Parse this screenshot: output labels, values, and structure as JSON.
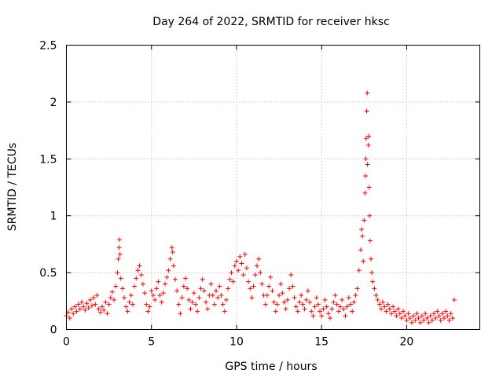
{
  "chart_data": {
    "type": "scatter",
    "title": "Day 264 of 2022, SRMTID for receiver hksc",
    "xlabel": "GPS time / hours",
    "ylabel": "SRMTID / TECUs",
    "xlim": [
      0,
      24.3
    ],
    "ylim": [
      0,
      2.5
    ],
    "xticks": [
      0,
      5,
      10,
      15,
      20
    ],
    "xtick_labels": [
      "0",
      "5",
      "10",
      "15",
      "20"
    ],
    "yticks": [
      0,
      0.5,
      1,
      1.5,
      2,
      2.5
    ],
    "ytick_labels": [
      "0",
      "0.5",
      "1",
      "1.5",
      "2",
      "2.5"
    ],
    "grid": true,
    "marker": "+",
    "marker_color": "#ff0000",
    "series": [
      {
        "name": "SRMTID",
        "points": [
          [
            0.0,
            0.12
          ],
          [
            0.1,
            0.15
          ],
          [
            0.2,
            0.1
          ],
          [
            0.3,
            0.18
          ],
          [
            0.4,
            0.14
          ],
          [
            0.5,
            0.2
          ],
          [
            0.6,
            0.16
          ],
          [
            0.7,
            0.22
          ],
          [
            0.8,
            0.18
          ],
          [
            0.9,
            0.24
          ],
          [
            1.0,
            0.2
          ],
          [
            1.1,
            0.17
          ],
          [
            1.2,
            0.23
          ],
          [
            1.3,
            0.19
          ],
          [
            1.4,
            0.26
          ],
          [
            1.5,
            0.21
          ],
          [
            1.6,
            0.28
          ],
          [
            1.7,
            0.22
          ],
          [
            1.8,
            0.3
          ],
          [
            1.9,
            0.18
          ],
          [
            2.0,
            0.15
          ],
          [
            2.1,
            0.2
          ],
          [
            2.2,
            0.17
          ],
          [
            2.3,
            0.24
          ],
          [
            2.4,
            0.14
          ],
          [
            2.5,
            0.22
          ],
          [
            2.6,
            0.28
          ],
          [
            2.7,
            0.33
          ],
          [
            2.8,
            0.26
          ],
          [
            2.9,
            0.38
          ],
          [
            3.0,
            0.5
          ],
          [
            3.05,
            0.62
          ],
          [
            3.1,
            0.72
          ],
          [
            3.12,
            0.79
          ],
          [
            3.15,
            0.66
          ],
          [
            3.2,
            0.45
          ],
          [
            3.3,
            0.36
          ],
          [
            3.4,
            0.28
          ],
          [
            3.5,
            0.2
          ],
          [
            3.6,
            0.16
          ],
          [
            3.7,
            0.24
          ],
          [
            3.8,
            0.3
          ],
          [
            3.9,
            0.22
          ],
          [
            4.0,
            0.38
          ],
          [
            4.1,
            0.45
          ],
          [
            4.2,
            0.52
          ],
          [
            4.3,
            0.56
          ],
          [
            4.4,
            0.48
          ],
          [
            4.5,
            0.4
          ],
          [
            4.6,
            0.32
          ],
          [
            4.7,
            0.22
          ],
          [
            4.8,
            0.16
          ],
          [
            4.9,
            0.2
          ],
          [
            5.0,
            0.34
          ],
          [
            5.1,
            0.3
          ],
          [
            5.2,
            0.26
          ],
          [
            5.3,
            0.36
          ],
          [
            5.4,
            0.42
          ],
          [
            5.5,
            0.3
          ],
          [
            5.6,
            0.24
          ],
          [
            5.7,
            0.32
          ],
          [
            5.8,
            0.4
          ],
          [
            5.9,
            0.46
          ],
          [
            6.0,
            0.52
          ],
          [
            6.1,
            0.62
          ],
          [
            6.2,
            0.72
          ],
          [
            6.25,
            0.68
          ],
          [
            6.3,
            0.56
          ],
          [
            6.4,
            0.44
          ],
          [
            6.5,
            0.34
          ],
          [
            6.6,
            0.22
          ],
          [
            6.7,
            0.14
          ],
          [
            6.8,
            0.28
          ],
          [
            6.9,
            0.38
          ],
          [
            7.0,
            0.45
          ],
          [
            7.1,
            0.36
          ],
          [
            7.2,
            0.26
          ],
          [
            7.3,
            0.18
          ],
          [
            7.4,
            0.24
          ],
          [
            7.5,
            0.32
          ],
          [
            7.6,
            0.22
          ],
          [
            7.7,
            0.16
          ],
          [
            7.8,
            0.28
          ],
          [
            7.9,
            0.36
          ],
          [
            8.0,
            0.44
          ],
          [
            8.1,
            0.34
          ],
          [
            8.2,
            0.24
          ],
          [
            8.3,
            0.18
          ],
          [
            8.4,
            0.3
          ],
          [
            8.5,
            0.4
          ],
          [
            8.6,
            0.3
          ],
          [
            8.7,
            0.22
          ],
          [
            8.8,
            0.34
          ],
          [
            8.9,
            0.28
          ],
          [
            9.0,
            0.38
          ],
          [
            9.1,
            0.3
          ],
          [
            9.2,
            0.22
          ],
          [
            9.3,
            0.16
          ],
          [
            9.4,
            0.26
          ],
          [
            9.5,
            0.36
          ],
          [
            9.6,
            0.44
          ],
          [
            9.7,
            0.5
          ],
          [
            9.8,
            0.42
          ],
          [
            9.9,
            0.56
          ],
          [
            10.0,
            0.6
          ],
          [
            10.1,
            0.52
          ],
          [
            10.2,
            0.64
          ],
          [
            10.3,
            0.58
          ],
          [
            10.4,
            0.48
          ],
          [
            10.5,
            0.66
          ],
          [
            10.6,
            0.54
          ],
          [
            10.7,
            0.42
          ],
          [
            10.8,
            0.36
          ],
          [
            10.9,
            0.28
          ],
          [
            11.0,
            0.38
          ],
          [
            11.1,
            0.48
          ],
          [
            11.2,
            0.56
          ],
          [
            11.3,
            0.62
          ],
          [
            11.4,
            0.5
          ],
          [
            11.5,
            0.4
          ],
          [
            11.6,
            0.3
          ],
          [
            11.7,
            0.22
          ],
          [
            11.8,
            0.3
          ],
          [
            11.9,
            0.38
          ],
          [
            12.0,
            0.46
          ],
          [
            12.1,
            0.34
          ],
          [
            12.2,
            0.24
          ],
          [
            12.3,
            0.16
          ],
          [
            12.4,
            0.22
          ],
          [
            12.5,
            0.3
          ],
          [
            12.6,
            0.4
          ],
          [
            12.7,
            0.32
          ],
          [
            12.8,
            0.24
          ],
          [
            12.9,
            0.18
          ],
          [
            13.0,
            0.26
          ],
          [
            13.1,
            0.36
          ],
          [
            13.2,
            0.48
          ],
          [
            13.3,
            0.38
          ],
          [
            13.4,
            0.28
          ],
          [
            13.5,
            0.2
          ],
          [
            13.6,
            0.16
          ],
          [
            13.7,
            0.24
          ],
          [
            13.8,
            0.3
          ],
          [
            13.9,
            0.22
          ],
          [
            14.0,
            0.18
          ],
          [
            14.1,
            0.26
          ],
          [
            14.2,
            0.34
          ],
          [
            14.3,
            0.24
          ],
          [
            14.4,
            0.16
          ],
          [
            14.5,
            0.12
          ],
          [
            14.6,
            0.2
          ],
          [
            14.7,
            0.28
          ],
          [
            14.8,
            0.22
          ],
          [
            14.9,
            0.16
          ],
          [
            15.0,
            0.12
          ],
          [
            15.1,
            0.18
          ],
          [
            15.2,
            0.26
          ],
          [
            15.3,
            0.2
          ],
          [
            15.4,
            0.14
          ],
          [
            15.5,
            0.1
          ],
          [
            15.6,
            0.18
          ],
          [
            15.7,
            0.24
          ],
          [
            15.8,
            0.3
          ],
          [
            15.9,
            0.22
          ],
          [
            16.0,
            0.16
          ],
          [
            16.1,
            0.2
          ],
          [
            16.2,
            0.26
          ],
          [
            16.3,
            0.18
          ],
          [
            16.4,
            0.12
          ],
          [
            16.5,
            0.2
          ],
          [
            16.6,
            0.28
          ],
          [
            16.7,
            0.22
          ],
          [
            16.8,
            0.16
          ],
          [
            16.9,
            0.24
          ],
          [
            17.0,
            0.3
          ],
          [
            17.1,
            0.36
          ],
          [
            17.2,
            0.52
          ],
          [
            17.3,
            0.7
          ],
          [
            17.35,
            0.88
          ],
          [
            17.4,
            0.82
          ],
          [
            17.45,
            0.6
          ],
          [
            17.5,
            0.96
          ],
          [
            17.55,
            1.2
          ],
          [
            17.58,
            1.35
          ],
          [
            17.6,
            1.5
          ],
          [
            17.62,
            1.68
          ],
          [
            17.65,
            1.92
          ],
          [
            17.68,
            2.08
          ],
          [
            17.7,
            1.45
          ],
          [
            17.75,
            1.62
          ],
          [
            17.78,
            1.7
          ],
          [
            17.8,
            1.25
          ],
          [
            17.82,
            1.0
          ],
          [
            17.85,
            0.78
          ],
          [
            17.9,
            0.62
          ],
          [
            17.95,
            0.5
          ],
          [
            18.0,
            0.42
          ],
          [
            18.1,
            0.36
          ],
          [
            18.2,
            0.3
          ],
          [
            18.3,
            0.26
          ],
          [
            18.4,
            0.22
          ],
          [
            18.5,
            0.18
          ],
          [
            18.6,
            0.24
          ],
          [
            18.7,
            0.2
          ],
          [
            18.8,
            0.16
          ],
          [
            18.9,
            0.22
          ],
          [
            19.0,
            0.18
          ],
          [
            19.1,
            0.14
          ],
          [
            19.2,
            0.2
          ],
          [
            19.3,
            0.16
          ],
          [
            19.4,
            0.12
          ],
          [
            19.5,
            0.18
          ],
          [
            19.6,
            0.14
          ],
          [
            19.7,
            0.1
          ],
          [
            19.8,
            0.16
          ],
          [
            19.9,
            0.12
          ],
          [
            20.0,
            0.08
          ],
          [
            20.1,
            0.14
          ],
          [
            20.2,
            0.1
          ],
          [
            20.3,
            0.06
          ],
          [
            20.4,
            0.12
          ],
          [
            20.5,
            0.08
          ],
          [
            20.6,
            0.14
          ],
          [
            20.7,
            0.1
          ],
          [
            20.8,
            0.06
          ],
          [
            20.9,
            0.12
          ],
          [
            21.0,
            0.08
          ],
          [
            21.1,
            0.14
          ],
          [
            21.2,
            0.1
          ],
          [
            21.3,
            0.06
          ],
          [
            21.4,
            0.12
          ],
          [
            21.5,
            0.08
          ],
          [
            21.6,
            0.14
          ],
          [
            21.7,
            0.1
          ],
          [
            21.8,
            0.16
          ],
          [
            21.9,
            0.12
          ],
          [
            22.0,
            0.08
          ],
          [
            22.1,
            0.14
          ],
          [
            22.2,
            0.1
          ],
          [
            22.3,
            0.16
          ],
          [
            22.4,
            0.12
          ],
          [
            22.5,
            0.08
          ],
          [
            22.6,
            0.14
          ],
          [
            22.7,
            0.1
          ],
          [
            22.8,
            0.26
          ]
        ]
      }
    ]
  }
}
